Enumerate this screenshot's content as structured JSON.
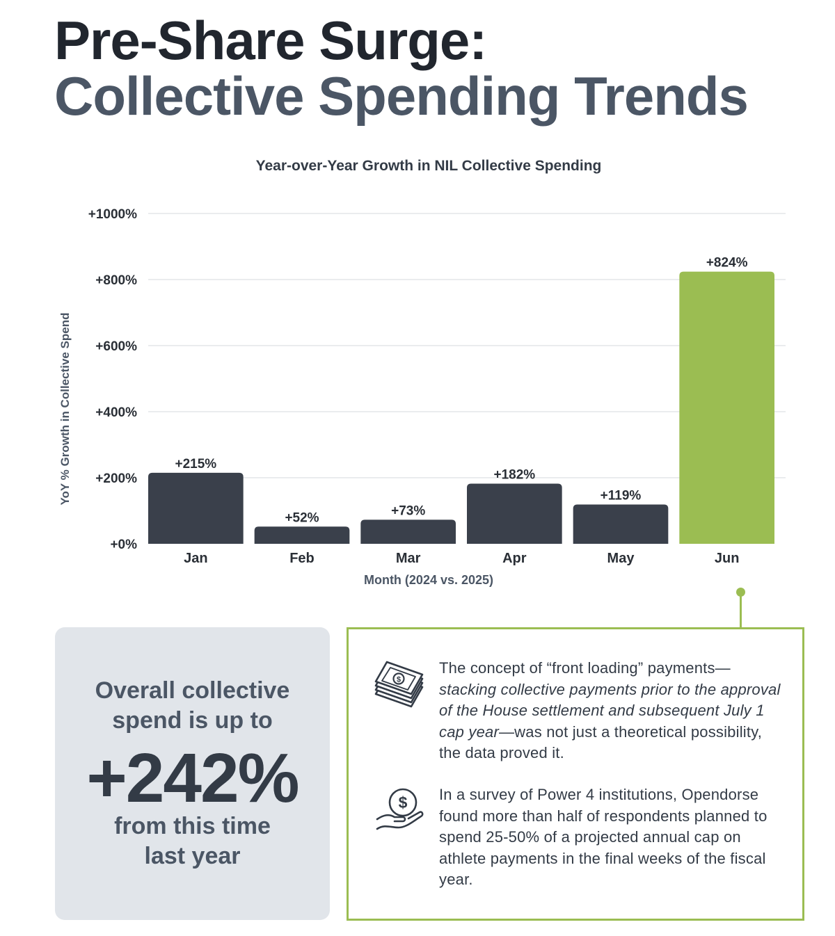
{
  "header": {
    "title_line1": "Pre-Share Surge:",
    "title_line2": "Collective Spending Trends"
  },
  "chart_data": {
    "type": "bar",
    "title": "Year-over-Year Growth in NIL Collective Spending",
    "xlabel": "Month (2024 vs. 2025)",
    "ylabel": "YoY % Growth in Collective Spend",
    "categories": [
      "Jan",
      "Feb",
      "Mar",
      "Apr",
      "May",
      "Jun"
    ],
    "values": [
      215,
      52,
      73,
      182,
      119,
      824
    ],
    "data_labels": [
      "+215%",
      "+52%",
      "+73%",
      "+182%",
      "+119%",
      "+824%"
    ],
    "ylim": [
      0,
      1000
    ],
    "yticks": [
      0,
      200,
      400,
      600,
      800,
      1000
    ],
    "ytick_labels": [
      "+0%",
      "+200%",
      "+400%",
      "+600%",
      "+800%",
      "+1000%"
    ],
    "grid": true,
    "bar_colors": [
      "#3a404b",
      "#3a404b",
      "#3a404b",
      "#3a404b",
      "#3a404b",
      "#9bbd52"
    ]
  },
  "stat": {
    "lead": "Overall collective spend is up to",
    "value": "+242%",
    "tail": "from this time last year"
  },
  "info": {
    "para1_plain_a": "The concept of “front loading” payments—",
    "para1_italic": "stacking collective payments prior to the approval of the House settlement and subsequent July 1 cap year",
    "para1_plain_b": "—was not just a theoretical possibility, the data proved it.",
    "para2": "In a survey of Power 4 institutions, Opendorse found more than half of respondents planned to spend 25-50% of a projected annual cap on athlete payments in the final weeks of the fiscal year.",
    "icon1": "money-stack-icon",
    "icon2": "hand-holding-coin-icon"
  },
  "colors": {
    "accent": "#9bbd52",
    "bar": "#3a404b",
    "panel": "#e1e5ea"
  }
}
